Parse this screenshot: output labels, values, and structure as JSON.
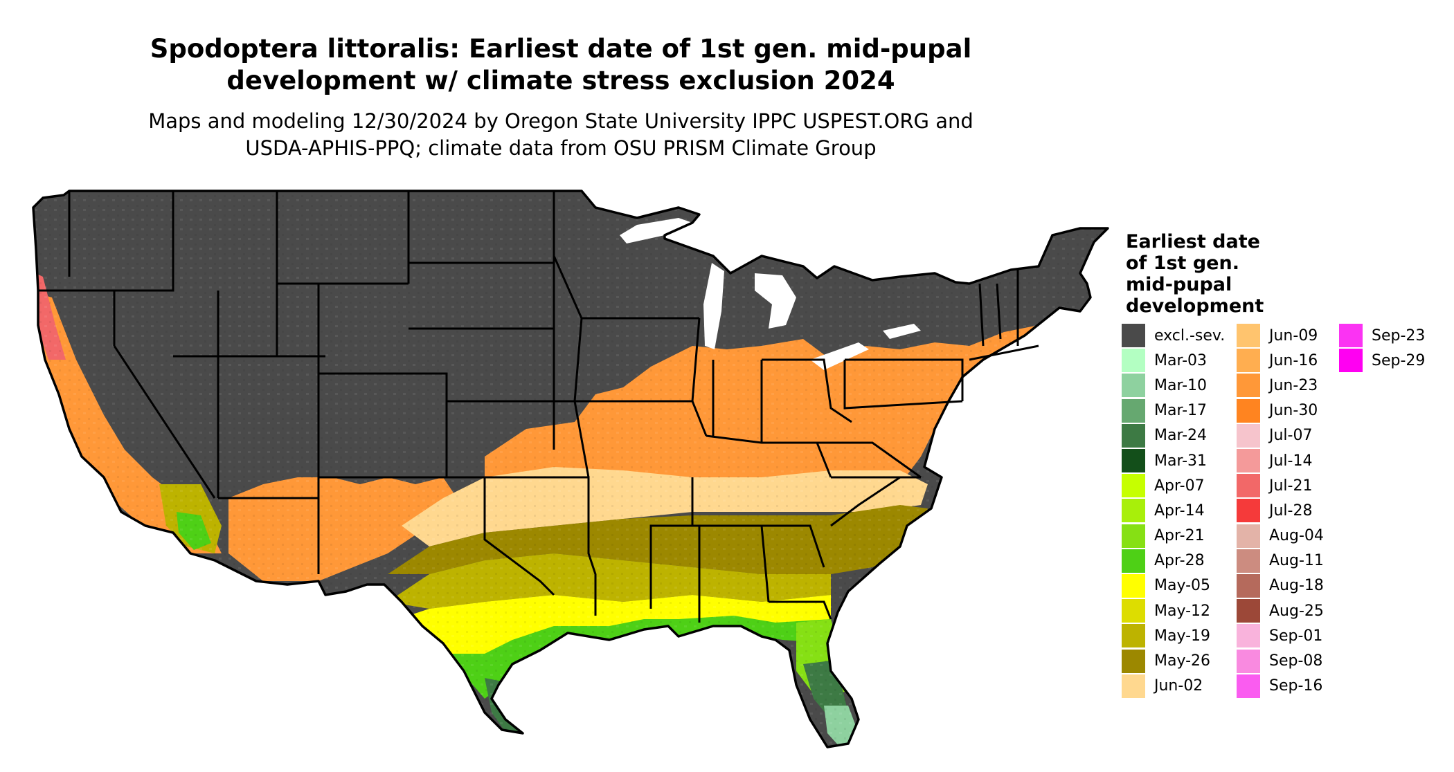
{
  "title_line1": "Spodoptera littoralis: Earliest date of 1st gen. mid-pupal",
  "title_line2": "development w/ climate stress exclusion 2024",
  "subtitle_line1": "Maps and modeling 12/30/2024 by Oregon State University IPPC USPEST.ORG and",
  "subtitle_line2": "USDA-APHIS-PPQ; climate data from OSU PRISM Climate Group",
  "legend": {
    "title_lines": [
      "Earliest date",
      "of 1st gen.",
      "mid-pupal",
      "development"
    ],
    "columns": [
      [
        {
          "label": "excl.-sev.",
          "color": "#4a4a4a"
        },
        {
          "label": "Mar-03",
          "color": "#b3ffc2"
        },
        {
          "label": "Mar-10",
          "color": "#8ed19f"
        },
        {
          "label": "Mar-17",
          "color": "#66a870"
        },
        {
          "label": "Mar-24",
          "color": "#3d7a44"
        },
        {
          "label": "Mar-31",
          "color": "#134f1a"
        },
        {
          "label": "Apr-07",
          "color": "#c6ff00"
        },
        {
          "label": "Apr-14",
          "color": "#a8ef0a"
        },
        {
          "label": "Apr-21",
          "color": "#86e014"
        },
        {
          "label": "Apr-28",
          "color": "#4ed016"
        },
        {
          "label": "May-05",
          "color": "#ffff00"
        },
        {
          "label": "May-12",
          "color": "#dddd00"
        },
        {
          "label": "May-19",
          "color": "#bdb300"
        },
        {
          "label": "May-26",
          "color": "#9c8800"
        },
        {
          "label": "Jun-02",
          "color": "#ffd88f"
        }
      ],
      [
        {
          "label": "Jun-09",
          "color": "#ffc46e"
        },
        {
          "label": "Jun-16",
          "color": "#ffae50"
        },
        {
          "label": "Jun-23",
          "color": "#ff9838"
        },
        {
          "label": "Jun-30",
          "color": "#ff8420"
        },
        {
          "label": "Jul-07",
          "color": "#f6c4cc"
        },
        {
          "label": "Jul-14",
          "color": "#f49a9a"
        },
        {
          "label": "Jul-21",
          "color": "#f26868"
        },
        {
          "label": "Jul-28",
          "color": "#f53a3a"
        },
        {
          "label": "Aug-04",
          "color": "#e3b3a8"
        },
        {
          "label": "Aug-11",
          "color": "#cc8c80"
        },
        {
          "label": "Aug-18",
          "color": "#b56a5c"
        },
        {
          "label": "Aug-25",
          "color": "#9c4838"
        },
        {
          "label": "Sep-01",
          "color": "#f9b3dc"
        },
        {
          "label": "Sep-08",
          "color": "#f98ae0"
        },
        {
          "label": "Sep-16",
          "color": "#fa5cf0"
        }
      ],
      [
        {
          "label": "Sep-23",
          "color": "#fb33f3"
        },
        {
          "label": "Sep-29",
          "color": "#ff00f2"
        }
      ]
    ]
  },
  "map_colors": {
    "excluded": "#4a4a4a",
    "border": "#000000",
    "great_lakes": "#ffffff",
    "north_band": "#ff9838",
    "mid_band": "#ffd88f",
    "south_olive": "#9c8800",
    "gulf_olive": "#bdb300",
    "gulf_yellow": "#ffff00",
    "coast_green": "#4ed016",
    "florida_green": "#86e014",
    "florida_dark": "#3d7a44",
    "florida_tip": "#8ed19f",
    "west_coast": "#ff9838",
    "west_coast_edge": "#f26868"
  }
}
